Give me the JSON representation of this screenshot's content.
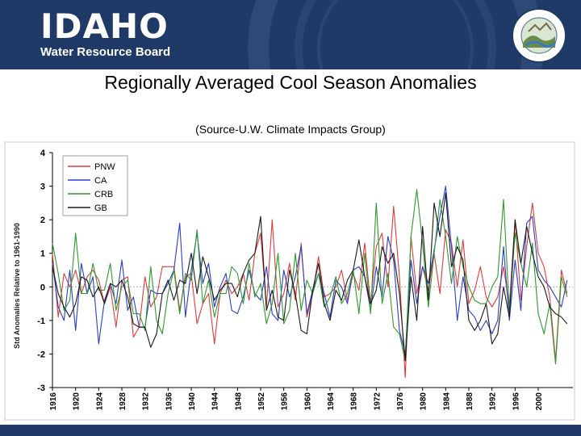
{
  "banner": {
    "logo_main": "IDAHO",
    "logo_sub": "Water Resource Board",
    "seal_motto": "ESTO PERPETUA"
  },
  "colors": {
    "banner": "#1f3a66",
    "PNW": "#e03a3a",
    "CA": "#2a3fc9",
    "CRB": "#2c9a2c",
    "GB": "#1a1a1a"
  },
  "chart_data": {
    "type": "line",
    "title": "Regionally Averaged Cool Season Anomalies",
    "subtitle": "(Source-U.W. Climate Impacts Group)",
    "xlabel": "",
    "ylabel": "Std Anomalies Relative to 1961-1990",
    "xlim": [
      1916,
      2006
    ],
    "ylim": [
      -3,
      4
    ],
    "yticks": [
      -3,
      -2,
      -1,
      0,
      1,
      2,
      3,
      4
    ],
    "xticks": [
      1916,
      1920,
      1924,
      1928,
      1932,
      1936,
      1940,
      1944,
      1948,
      1952,
      1956,
      1960,
      1964,
      1968,
      1972,
      1976,
      1980,
      1984,
      1988,
      1992,
      1996,
      2000
    ],
    "legend_position": "top-left",
    "x": [
      1916,
      1917,
      1918,
      1919,
      1920,
      1921,
      1922,
      1923,
      1924,
      1925,
      1926,
      1927,
      1928,
      1929,
      1930,
      1931,
      1932,
      1933,
      1934,
      1935,
      1936,
      1937,
      1938,
      1939,
      1940,
      1941,
      1942,
      1943,
      1944,
      1945,
      1946,
      1947,
      1948,
      1949,
      1950,
      1951,
      1952,
      1953,
      1954,
      1955,
      1956,
      1957,
      1958,
      1959,
      1960,
      1961,
      1962,
      1963,
      1964,
      1965,
      1966,
      1967,
      1968,
      1969,
      1970,
      1971,
      1972,
      1973,
      1974,
      1975,
      1976,
      1977,
      1978,
      1979,
      1980,
      1981,
      1982,
      1983,
      1984,
      1985,
      1986,
      1987,
      1988,
      1989,
      1990,
      1991,
      1992,
      1993,
      1994,
      1995,
      1996,
      1997,
      1998,
      1999,
      2000,
      2001,
      2002,
      2003,
      2004,
      2005
    ],
    "series": [
      {
        "name": "PNW",
        "values": [
          1.0,
          -0.9,
          0.4,
          0.0,
          0.5,
          -0.2,
          0.3,
          0.5,
          0.2,
          -0.5,
          0.0,
          -1.2,
          0.2,
          0.3,
          -1.5,
          -1.2,
          0.3,
          -0.6,
          -0.3,
          0.6,
          0.6,
          0.6,
          -0.7,
          0.3,
          0.4,
          -1.1,
          -0.5,
          -0.2,
          -1.7,
          -0.2,
          0.2,
          -0.2,
          0.0,
          0.4,
          -0.4,
          1.0,
          1.6,
          -0.6,
          2.0,
          -0.6,
          -0.2,
          0.7,
          -0.4,
          1.3,
          -0.9,
          -0.2,
          0.9,
          -0.3,
          -0.2,
          0.0,
          0.5,
          -0.4,
          0.4,
          -0.1,
          1.3,
          -0.5,
          1.2,
          1.6,
          0.0,
          2.4,
          0.3,
          -2.7,
          1.5,
          -0.2,
          0.6,
          -0.1,
          1.0,
          -0.2,
          1.7,
          1.3,
          0.0,
          1.4,
          -0.5,
          -0.1,
          0.6,
          -0.3,
          -0.6,
          -0.3,
          0.6,
          -0.6,
          2.0,
          -0.4,
          1.2,
          2.5,
          1.0,
          0.6,
          -0.3,
          -2.2,
          0.5,
          -0.2
        ]
      },
      {
        "name": "CA",
        "values": [
          0.7,
          -0.6,
          -1.0,
          0.5,
          -1.3,
          0.7,
          -0.2,
          0.3,
          -1.7,
          -0.4,
          0.1,
          -0.5,
          0.8,
          -0.7,
          -0.3,
          -1.2,
          -1.2,
          -0.1,
          -0.2,
          -0.2,
          0.1,
          0.5,
          1.9,
          -0.9,
          0.5,
          1.6,
          0.1,
          0.7,
          -0.6,
          0.0,
          0.4,
          -0.7,
          -0.8,
          -0.3,
          0.5,
          -0.2,
          -0.4,
          0.6,
          -0.8,
          -1.0,
          0.5,
          -0.3,
          0.3,
          1.2,
          -0.8,
          -0.1,
          0.4,
          -0.2,
          -0.9,
          0.2,
          0.0,
          -0.5,
          0.5,
          0.6,
          0.3,
          -0.7,
          0.6,
          -0.3,
          1.5,
          0.8,
          -1.3,
          -2.0,
          0.8,
          -0.5,
          0.6,
          0.1,
          1.1,
          2.1,
          3.0,
          1.2,
          -1.0,
          0.3,
          -0.7,
          -0.9,
          -1.3,
          -1.0,
          -1.4,
          -1.0,
          1.2,
          -1.0,
          0.8,
          -0.7,
          1.9,
          2.1,
          0.5,
          0.2,
          0.0,
          -0.3,
          -0.6,
          0.2
        ]
      },
      {
        "name": "CRB",
        "values": [
          1.3,
          0.4,
          -0.7,
          -0.4,
          1.6,
          -0.2,
          -0.2,
          0.7,
          -0.1,
          -0.1,
          0.7,
          -0.7,
          0.0,
          0.2,
          -0.8,
          -0.8,
          -1.3,
          0.6,
          -1.0,
          -1.4,
          -0.2,
          0.5,
          -0.8,
          0.4,
          0.2,
          1.7,
          -0.5,
          0.2,
          -0.9,
          -0.2,
          -0.2,
          0.6,
          0.4,
          -0.5,
          0.7,
          -0.3,
          0.1,
          -1.1,
          -0.5,
          1.0,
          -1.1,
          -0.7,
          1.0,
          -0.7,
          0.2,
          -0.2,
          0.4,
          -0.6,
          -0.3,
          0.3,
          -0.5,
          -0.2,
          0.5,
          -0.8,
          1.0,
          -0.8,
          2.5,
          -0.5,
          0.4,
          -1.2,
          -1.4,
          -2.2,
          1.5,
          2.9,
          1.3,
          -0.6,
          1.0,
          2.6,
          1.5,
          0.1,
          1.5,
          0.6,
          0.0,
          -0.4,
          -0.5,
          -0.5,
          0.0,
          0.3,
          2.6,
          -0.7,
          1.6,
          0.7,
          0.0,
          1.3,
          -0.8,
          -1.4,
          -0.5,
          -2.3,
          0.3,
          -0.3
        ]
      },
      {
        "name": "GB",
        "values": [
          0.6,
          -0.2,
          -0.6,
          -0.9,
          -0.5,
          0.3,
          0.2,
          -0.3,
          0.0,
          -0.5,
          0.1,
          0.0,
          0.2,
          -0.3,
          -1.1,
          -1.2,
          -1.2,
          -1.8,
          -1.4,
          -0.2,
          0.2,
          -0.4,
          0.2,
          0.1,
          1.0,
          -0.2,
          0.9,
          0.3,
          -0.4,
          -0.1,
          0.1,
          0.1,
          -0.3,
          0.4,
          0.8,
          1.0,
          2.1,
          -0.7,
          -0.1,
          -0.9,
          -1.0,
          0.5,
          -0.2,
          -1.3,
          -1.4,
          -0.1,
          0.7,
          -0.5,
          -1.0,
          -0.1,
          -0.4,
          0.2,
          0.5,
          1.4,
          0.3,
          -0.5,
          -0.1,
          1.2,
          0.7,
          1.0,
          -0.2,
          -2.2,
          0.3,
          -1.0,
          1.8,
          -0.4,
          2.5,
          1.5,
          2.8,
          0.6,
          1.2,
          0.8,
          -1.0,
          -1.3,
          -1.0,
          -0.5,
          -1.7,
          -1.4,
          0.0,
          -0.9,
          2.0,
          0.7,
          1.8,
          1.0,
          0.3,
          0.0,
          -0.6,
          -0.8,
          -0.9,
          -1.1
        ]
      }
    ]
  }
}
